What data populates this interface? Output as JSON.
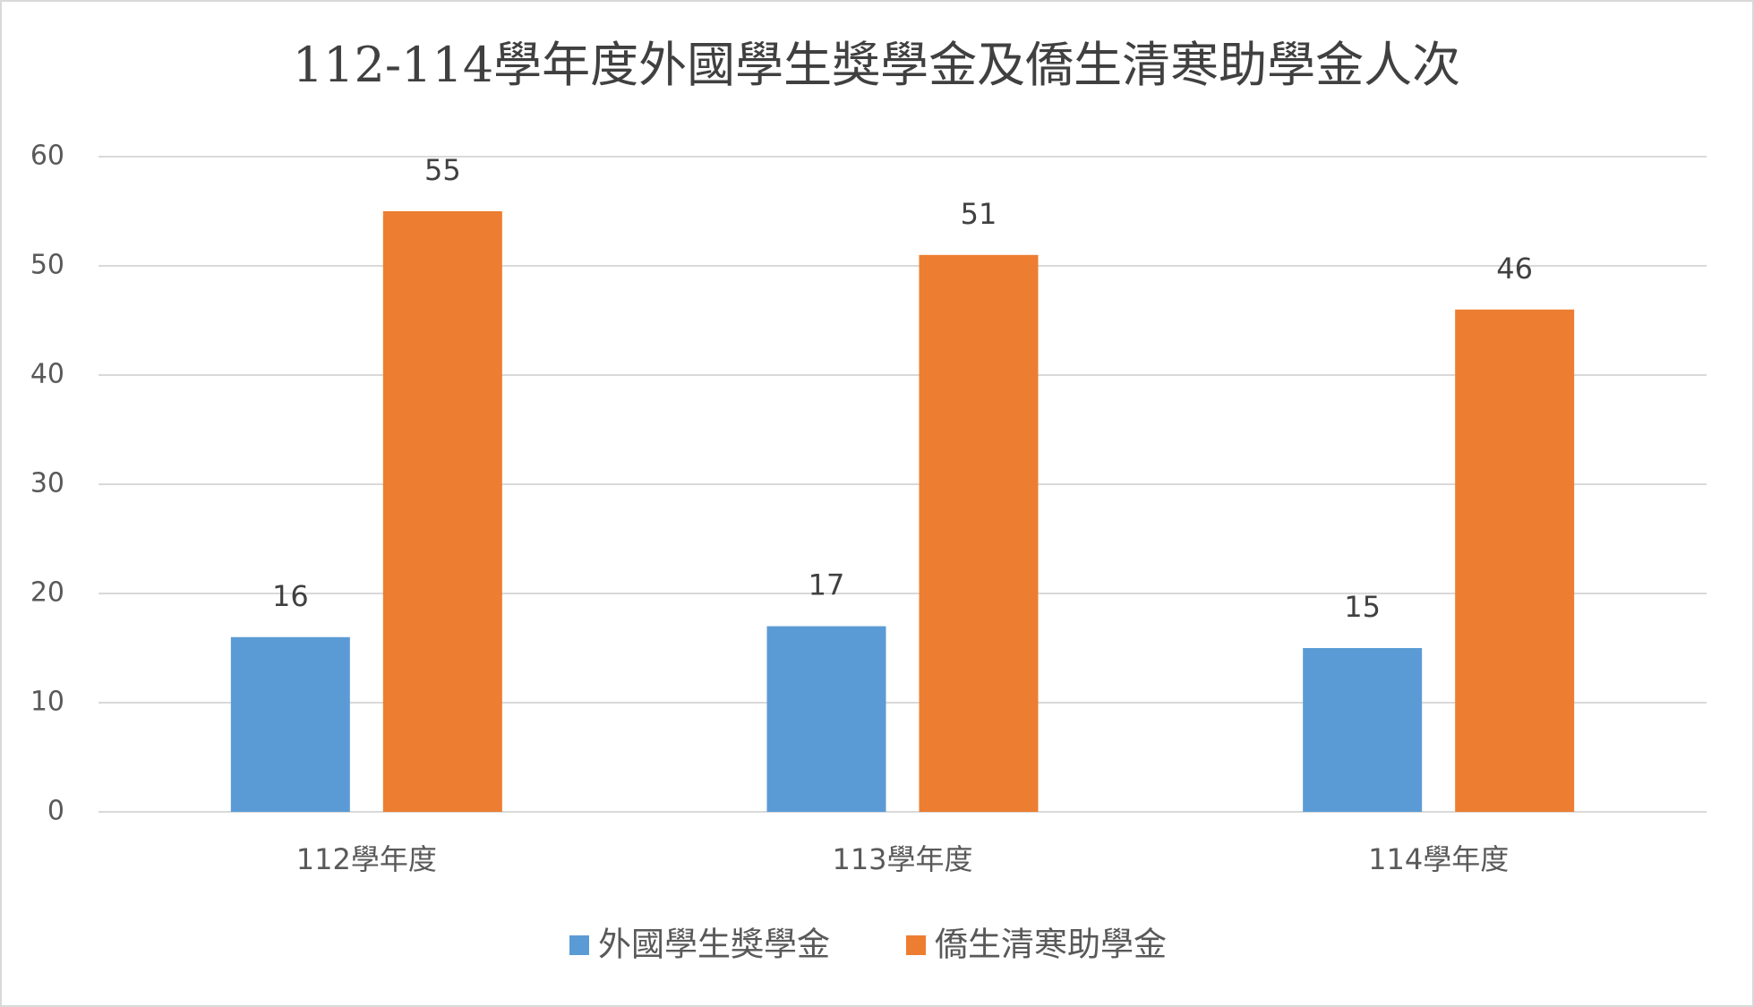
{
  "chart_data": {
    "type": "bar",
    "title": "112-114學年度外國學生獎學金及僑生清寒助學金人次",
    "categories": [
      "112學年度",
      "113學年度",
      "114學年度"
    ],
    "series": [
      {
        "name": "外國學生獎學金",
        "color": "#5b9bd5",
        "values": [
          16,
          17,
          15
        ]
      },
      {
        "name": "僑生清寒助學金",
        "color": "#ed7d31",
        "values": [
          55,
          51,
          46
        ]
      }
    ],
    "ylim": [
      0,
      60
    ],
    "yticks": [
      0,
      10,
      20,
      30,
      40,
      50,
      60
    ],
    "grid": true,
    "legend": "bottom"
  }
}
